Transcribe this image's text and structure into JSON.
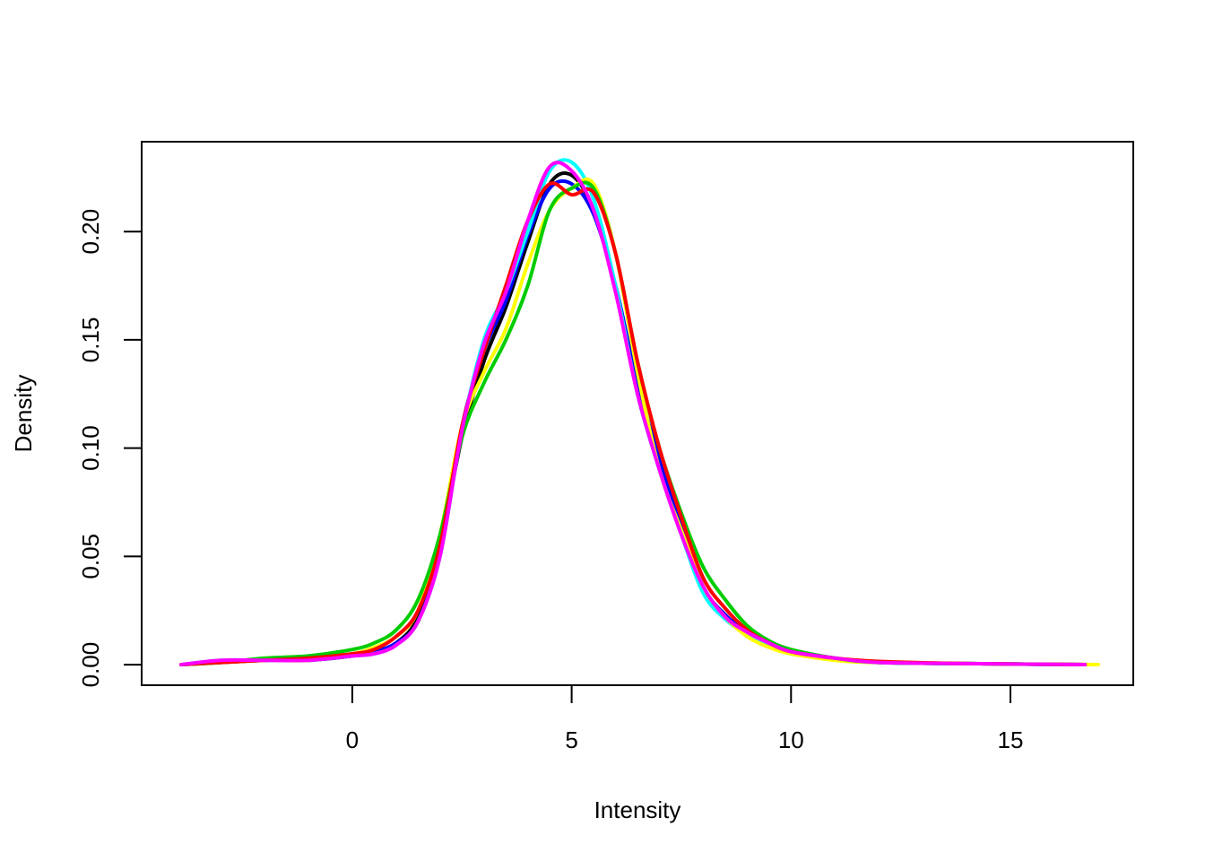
{
  "chart_data": {
    "type": "line",
    "title": "",
    "xlabel": "Intensity",
    "ylabel": "Density",
    "xlim": [
      -4.8,
      17.8
    ],
    "ylim": [
      -0.0095,
      0.2415
    ],
    "grid": false,
    "legend": "none",
    "x_ticks": [
      "0",
      "5",
      "10",
      "15"
    ],
    "x_tick_values": [
      0,
      5,
      10,
      15
    ],
    "y_ticks": [
      "0.00",
      "0.05",
      "0.10",
      "0.15",
      "0.20"
    ],
    "y_tick_values": [
      0,
      0.05,
      0.1,
      0.15,
      0.2
    ],
    "series": [
      {
        "color": "#000000",
        "points": [
          [
            -3.9,
            0
          ],
          [
            -3,
            0.001
          ],
          [
            -2,
            0.002
          ],
          [
            -1,
            0.002
          ],
          [
            0,
            0.004
          ],
          [
            0.5,
            0.006
          ],
          [
            1,
            0.01
          ],
          [
            1.5,
            0.022
          ],
          [
            2,
            0.055
          ],
          [
            2.5,
            0.105
          ],
          [
            3,
            0.14
          ],
          [
            3.5,
            0.165
          ],
          [
            4,
            0.195
          ],
          [
            4.5,
            0.222
          ],
          [
            5,
            0.226
          ],
          [
            5.5,
            0.21
          ],
          [
            6,
            0.175
          ],
          [
            6.5,
            0.13
          ],
          [
            7,
            0.095
          ],
          [
            7.5,
            0.065
          ],
          [
            8,
            0.035
          ],
          [
            8.5,
            0.022
          ],
          [
            9,
            0.015
          ],
          [
            9.5,
            0.01
          ],
          [
            10,
            0.006
          ],
          [
            11,
            0.003
          ],
          [
            12,
            0.001
          ],
          [
            14,
            0.0005
          ],
          [
            16.7,
            0
          ]
        ]
      },
      {
        "color": "#0000ff",
        "points": [
          [
            -3.9,
            0
          ],
          [
            -3,
            0.001
          ],
          [
            -2,
            0.002
          ],
          [
            -1,
            0.002
          ],
          [
            0,
            0.004
          ],
          [
            0.5,
            0.006
          ],
          [
            1,
            0.01
          ],
          [
            1.5,
            0.02
          ],
          [
            2,
            0.052
          ],
          [
            2.5,
            0.11
          ],
          [
            3,
            0.145
          ],
          [
            3.5,
            0.168
          ],
          [
            4,
            0.198
          ],
          [
            4.5,
            0.22
          ],
          [
            5,
            0.222
          ],
          [
            5.5,
            0.208
          ],
          [
            6,
            0.175
          ],
          [
            6.5,
            0.13
          ],
          [
            7,
            0.095
          ],
          [
            7.5,
            0.065
          ],
          [
            8,
            0.036
          ],
          [
            8.5,
            0.023
          ],
          [
            9,
            0.015
          ],
          [
            9.5,
            0.01
          ],
          [
            10,
            0.006
          ],
          [
            11,
            0.003
          ],
          [
            12,
            0.001
          ],
          [
            14,
            0.0005
          ],
          [
            16.7,
            0
          ]
        ]
      },
      {
        "color": "#00ffff",
        "points": [
          [
            -3.9,
            0
          ],
          [
            -3,
            0.002
          ],
          [
            -2,
            0.002
          ],
          [
            -1,
            0.002
          ],
          [
            0,
            0.004
          ],
          [
            0.5,
            0.005
          ],
          [
            1,
            0.009
          ],
          [
            1.5,
            0.02
          ],
          [
            2,
            0.05
          ],
          [
            2.5,
            0.108
          ],
          [
            3,
            0.15
          ],
          [
            3.5,
            0.172
          ],
          [
            4,
            0.2
          ],
          [
            4.5,
            0.228
          ],
          [
            5,
            0.232
          ],
          [
            5.5,
            0.215
          ],
          [
            6,
            0.175
          ],
          [
            6.5,
            0.125
          ],
          [
            7,
            0.09
          ],
          [
            7.5,
            0.06
          ],
          [
            8,
            0.033
          ],
          [
            8.5,
            0.021
          ],
          [
            9,
            0.014
          ],
          [
            9.5,
            0.009
          ],
          [
            10,
            0.005
          ],
          [
            11,
            0.003
          ],
          [
            12,
            0.001
          ],
          [
            14,
            0.0005
          ],
          [
            16.7,
            0
          ]
        ]
      },
      {
        "color": "#ffff00",
        "points": [
          [
            -3.9,
            0
          ],
          [
            -3,
            0.001
          ],
          [
            -2,
            0.002
          ],
          [
            -1,
            0.002
          ],
          [
            0,
            0.005
          ],
          [
            0.5,
            0.008
          ],
          [
            1,
            0.013
          ],
          [
            1.5,
            0.025
          ],
          [
            2,
            0.06
          ],
          [
            2.5,
            0.11
          ],
          [
            3,
            0.135
          ],
          [
            3.5,
            0.155
          ],
          [
            4,
            0.185
          ],
          [
            4.5,
            0.21
          ],
          [
            5,
            0.22
          ],
          [
            5.5,
            0.222
          ],
          [
            6,
            0.19
          ],
          [
            6.5,
            0.135
          ],
          [
            7,
            0.09
          ],
          [
            7.5,
            0.062
          ],
          [
            8,
            0.036
          ],
          [
            8.5,
            0.022
          ],
          [
            9,
            0.013
          ],
          [
            9.5,
            0.008
          ],
          [
            10,
            0.005
          ],
          [
            11,
            0.002
          ],
          [
            12,
            0.001
          ],
          [
            14,
            0.0005
          ],
          [
            17,
            0
          ]
        ]
      },
      {
        "color": "#00cc00",
        "points": [
          [
            -3.9,
            0
          ],
          [
            -3,
            0.001
          ],
          [
            -2,
            0.003
          ],
          [
            -1,
            0.004
          ],
          [
            0,
            0.007
          ],
          [
            0.5,
            0.01
          ],
          [
            1,
            0.016
          ],
          [
            1.5,
            0.03
          ],
          [
            2,
            0.06
          ],
          [
            2.5,
            0.105
          ],
          [
            3,
            0.13
          ],
          [
            3.5,
            0.15
          ],
          [
            4,
            0.175
          ],
          [
            4.5,
            0.21
          ],
          [
            5,
            0.22
          ],
          [
            5.5,
            0.22
          ],
          [
            6,
            0.19
          ],
          [
            6.5,
            0.14
          ],
          [
            7,
            0.1
          ],
          [
            7.5,
            0.07
          ],
          [
            8,
            0.045
          ],
          [
            8.5,
            0.03
          ],
          [
            9,
            0.018
          ],
          [
            9.5,
            0.011
          ],
          [
            10,
            0.007
          ],
          [
            11,
            0.003
          ],
          [
            12,
            0.001
          ],
          [
            14,
            0.0005
          ],
          [
            16.7,
            0
          ]
        ]
      },
      {
        "color": "#ff0000",
        "points": [
          [
            -3.9,
            0
          ],
          [
            -3,
            0.001
          ],
          [
            -2,
            0.002
          ],
          [
            -1,
            0.003
          ],
          [
            0,
            0.005
          ],
          [
            0.5,
            0.007
          ],
          [
            1,
            0.013
          ],
          [
            1.5,
            0.025
          ],
          [
            2,
            0.055
          ],
          [
            2.5,
            0.11
          ],
          [
            3,
            0.145
          ],
          [
            3.5,
            0.175
          ],
          [
            4,
            0.205
          ],
          [
            4.5,
            0.222
          ],
          [
            5,
            0.217
          ],
          [
            5.5,
            0.218
          ],
          [
            6,
            0.19
          ],
          [
            6.5,
            0.14
          ],
          [
            7,
            0.1
          ],
          [
            7.5,
            0.068
          ],
          [
            8,
            0.04
          ],
          [
            8.5,
            0.026
          ],
          [
            9,
            0.016
          ],
          [
            9.5,
            0.01
          ],
          [
            10,
            0.006
          ],
          [
            11,
            0.003
          ],
          [
            12,
            0.0015
          ],
          [
            14,
            0.0005
          ],
          [
            16.7,
            0
          ]
        ]
      },
      {
        "color": "#ff00ff",
        "points": [
          [
            -3.9,
            0
          ],
          [
            -3,
            0.002
          ],
          [
            -2,
            0.002
          ],
          [
            -1,
            0.002
          ],
          [
            0,
            0.004
          ],
          [
            0.5,
            0.005
          ],
          [
            1,
            0.009
          ],
          [
            1.5,
            0.02
          ],
          [
            2,
            0.05
          ],
          [
            2.5,
            0.108
          ],
          [
            3,
            0.148
          ],
          [
            3.5,
            0.172
          ],
          [
            4,
            0.205
          ],
          [
            4.5,
            0.23
          ],
          [
            5,
            0.228
          ],
          [
            5.5,
            0.21
          ],
          [
            6,
            0.172
          ],
          [
            6.5,
            0.125
          ],
          [
            7,
            0.09
          ],
          [
            7.5,
            0.06
          ],
          [
            8,
            0.036
          ],
          [
            8.5,
            0.022
          ],
          [
            9,
            0.015
          ],
          [
            9.5,
            0.01
          ],
          [
            10,
            0.006
          ],
          [
            11,
            0.003
          ],
          [
            12,
            0.001
          ],
          [
            14,
            0.0005
          ],
          [
            16.7,
            0
          ]
        ]
      }
    ]
  }
}
